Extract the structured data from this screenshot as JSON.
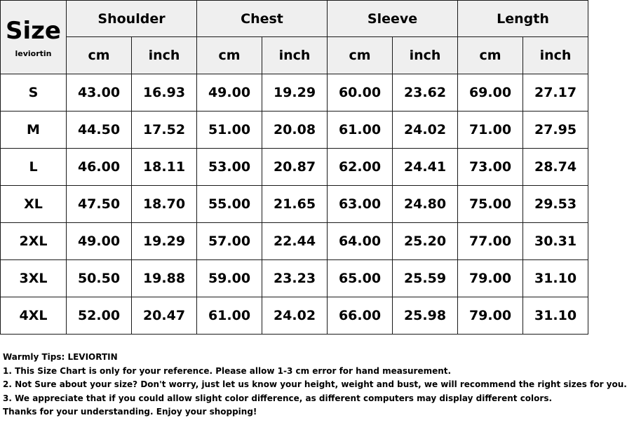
{
  "table": {
    "corner_title": "Size",
    "corner_brand": "leviortin",
    "groups": [
      "Shoulder",
      "Chest",
      "Sleeve",
      "Length"
    ],
    "units": [
      "cm",
      "inch",
      "cm",
      "inch",
      "cm",
      "inch",
      "cm",
      "inch"
    ],
    "rows": [
      {
        "size": "S",
        "values": [
          "43.00",
          "16.93",
          "49.00",
          "19.29",
          "60.00",
          "23.62",
          "69.00",
          "27.17"
        ]
      },
      {
        "size": "M",
        "values": [
          "44.50",
          "17.52",
          "51.00",
          "20.08",
          "61.00",
          "24.02",
          "71.00",
          "27.95"
        ]
      },
      {
        "size": "L",
        "values": [
          "46.00",
          "18.11",
          "53.00",
          "20.87",
          "62.00",
          "24.41",
          "73.00",
          "28.74"
        ]
      },
      {
        "size": "XL",
        "values": [
          "47.50",
          "18.70",
          "55.00",
          "21.65",
          "63.00",
          "24.80",
          "75.00",
          "29.53"
        ]
      },
      {
        "size": "2XL",
        "values": [
          "49.00",
          "19.29",
          "57.00",
          "22.44",
          "64.00",
          "25.20",
          "77.00",
          "30.31"
        ]
      },
      {
        "size": "3XL",
        "values": [
          "50.50",
          "19.88",
          "59.00",
          "23.23",
          "65.00",
          "25.59",
          "79.00",
          "31.10"
        ]
      },
      {
        "size": "4XL",
        "values": [
          "52.00",
          "20.47",
          "61.00",
          "24.02",
          "66.00",
          "25.98",
          "79.00",
          "31.10"
        ]
      }
    ]
  },
  "tips": {
    "lines": [
      "Warmly Tips: LEVIORTIN",
      "1. This Size Chart is only for your reference. Please allow 1-3 cm error for hand measurement.",
      "2. Not Sure about your size? Don't worry, just let us know your height, weight and bust, we will recommend the right sizes for you.",
      "3. We appreciate that if you could allow slight color difference, as different computers may display different colors.",
      "Thanks for your understanding. Enjoy your shopping!"
    ]
  },
  "colors": {
    "header_background": "#efefef",
    "border": "#1a1a1a",
    "text": "#000000"
  }
}
